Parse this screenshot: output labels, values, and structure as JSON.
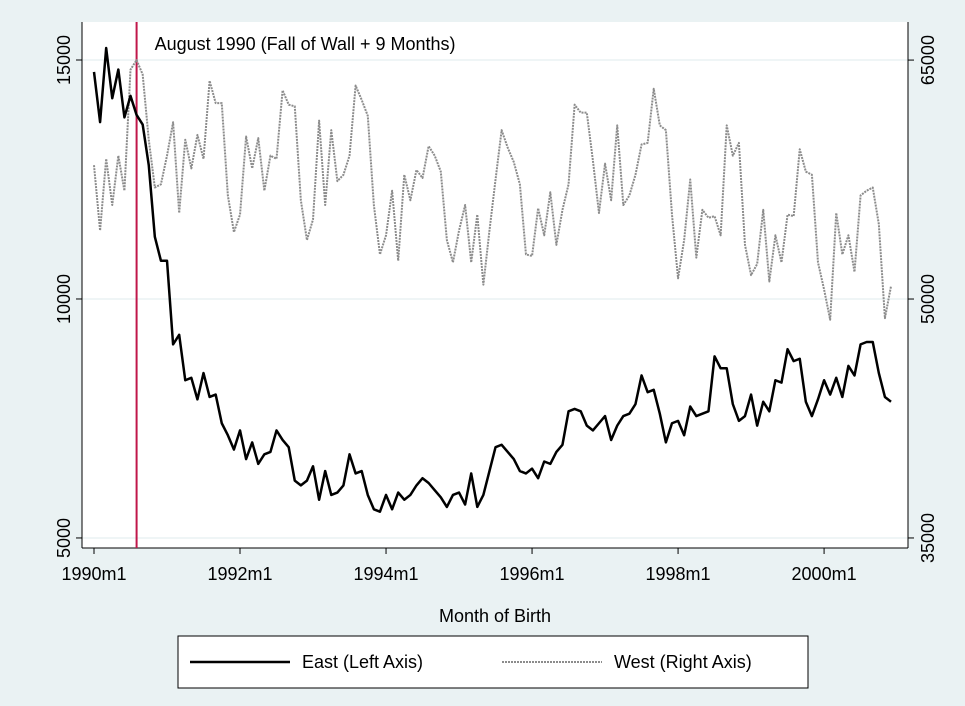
{
  "chart_data": {
    "type": "line",
    "x_label": "Month of Birth",
    "x": [
      "1990m1",
      "1990m2",
      "1990m3",
      "1990m4",
      "1990m5",
      "1990m6",
      "1990m7",
      "1990m8",
      "1990m9",
      "1990m10",
      "1990m11",
      "1990m12",
      "1991m1",
      "1991m2",
      "1991m3",
      "1991m4",
      "1991m5",
      "1991m6",
      "1991m7",
      "1991m8",
      "1991m9",
      "1991m10",
      "1991m11",
      "1991m12",
      "1992m1",
      "1992m2",
      "1992m3",
      "1992m4",
      "1992m5",
      "1992m6",
      "1992m7",
      "1992m8",
      "1992m9",
      "1992m10",
      "1992m11",
      "1992m12",
      "1993m1",
      "1993m2",
      "1993m3",
      "1993m4",
      "1993m5",
      "1993m6",
      "1993m7",
      "1993m8",
      "1993m9",
      "1993m10",
      "1993m11",
      "1993m12",
      "1994m1",
      "1994m2",
      "1994m3",
      "1994m4",
      "1994m5",
      "1994m6",
      "1994m7",
      "1994m8",
      "1994m9",
      "1994m10",
      "1994m11",
      "1994m12",
      "1995m1",
      "1995m2",
      "1995m3",
      "1995m4",
      "1995m5",
      "1995m6",
      "1995m7",
      "1995m8",
      "1995m9",
      "1995m10",
      "1995m11",
      "1995m12",
      "1996m1",
      "1996m2",
      "1996m3",
      "1996m4",
      "1996m5",
      "1996m6",
      "1996m7",
      "1996m8",
      "1996m9",
      "1996m10",
      "1996m11",
      "1996m12",
      "1997m1",
      "1997m2",
      "1997m3",
      "1997m4",
      "1997m5",
      "1997m6",
      "1997m7",
      "1997m8",
      "1997m9",
      "1997m10",
      "1997m11",
      "1997m12",
      "1998m1",
      "1998m2",
      "1998m3",
      "1998m4",
      "1998m5",
      "1998m6",
      "1998m7",
      "1998m8",
      "1998m9",
      "1998m10",
      "1998m11",
      "1998m12",
      "1999m1",
      "1999m2",
      "1999m3",
      "1999m4",
      "1999m5",
      "1999m6",
      "1999m7",
      "1999m8",
      "1999m9",
      "1999m10",
      "1999m11",
      "1999m12",
      "2000m1",
      "2000m2",
      "2000m3",
      "2000m4",
      "2000m5",
      "2000m6",
      "2000m7",
      "2000m8",
      "2000m9",
      "2000m10",
      "2000m11",
      "2000m12"
    ],
    "series": [
      {
        "name": "East (Left Axis)",
        "color": "#000000",
        "style": "solid",
        "axis": "y",
        "values": [
          14750,
          13700,
          15250,
          14200,
          14800,
          13800,
          14250,
          13850,
          13650,
          12800,
          11300,
          10800,
          10800,
          9050,
          9250,
          8300,
          8350,
          7900,
          8450,
          7950,
          8000,
          7400,
          7150,
          6850,
          7250,
          6650,
          7000,
          6550,
          6750,
          6800,
          7250,
          7050,
          6900,
          6200,
          6100,
          6200,
          6500,
          5800,
          6400,
          5900,
          5950,
          6100,
          6750,
          6350,
          6400,
          5900,
          5600,
          5550,
          5900,
          5600,
          5950,
          5800,
          5900,
          6100,
          6250,
          6150,
          6000,
          5850,
          5650,
          5900,
          5950,
          5700,
          6350,
          5650,
          5900,
          6400,
          6900,
          6950,
          6800,
          6650,
          6400,
          6350,
          6450,
          6250,
          6600,
          6550,
          6800,
          6950,
          7650,
          7700,
          7650,
          7350,
          7250,
          7400,
          7550,
          7050,
          7350,
          7550,
          7600,
          7800,
          8400,
          8050,
          8100,
          7600,
          7000,
          7400,
          7450,
          7150,
          7750,
          7550,
          7600,
          7650,
          8800,
          8550,
          8550,
          7800,
          7450,
          7550,
          8000,
          7350,
          7850,
          7650,
          8300,
          8250,
          8950,
          8700,
          8750,
          7850,
          7550,
          7900,
          8300,
          8000,
          8350,
          7950,
          8600,
          8400,
          9050,
          9100,
          9100,
          8450,
          7950,
          7850
        ]
      },
      {
        "name": "West (Right Axis)",
        "color": "#8c8c8c",
        "style": "dotted",
        "axis": "y2",
        "values": [
          58400,
          54300,
          58800,
          55900,
          59000,
          56800,
          64400,
          65000,
          64100,
          60000,
          57000,
          57200,
          59000,
          61100,
          55400,
          60000,
          58200,
          60300,
          58800,
          63700,
          62300,
          62300,
          56500,
          54200,
          55300,
          60200,
          58200,
          60100,
          56800,
          59000,
          58800,
          63100,
          62200,
          62100,
          56200,
          53700,
          55000,
          61200,
          55900,
          60600,
          57400,
          57800,
          59000,
          63400,
          62500,
          61500,
          55900,
          52800,
          54000,
          56800,
          52400,
          57800,
          56200,
          58100,
          57600,
          59600,
          59000,
          58000,
          53700,
          52300,
          54300,
          55900,
          52300,
          55300,
          50900,
          54300,
          57500,
          60600,
          59500,
          58600,
          57200,
          52800,
          52700,
          55700,
          54000,
          56700,
          53400,
          55600,
          57200,
          62200,
          61700,
          61700,
          58700,
          55400,
          58500,
          56200,
          60900,
          55900,
          56500,
          57800,
          59700,
          59800,
          63200,
          60900,
          60600,
          55300,
          51300,
          53700,
          57500,
          52600,
          55600,
          55100,
          55200,
          54000,
          60900,
          59000,
          59800,
          53400,
          51500,
          52200,
          55600,
          51100,
          54000,
          52300,
          55300,
          55200,
          59400,
          58000,
          57800,
          52300,
          50600,
          48700,
          55400,
          52800,
          54000,
          51700,
          56500,
          56800,
          57000,
          54700,
          48800,
          50800
        ]
      }
    ],
    "xticks": [
      "1990m1",
      "1992m1",
      "1994m1",
      "1996m1",
      "1998m1",
      "2000m1"
    ],
    "ylim": [
      4790,
      15795
    ],
    "yticks": [
      5000,
      10000,
      15000
    ],
    "y2lim": [
      34370,
      67390
    ],
    "y2ticks": [
      35000,
      50000,
      65000
    ],
    "grid": true,
    "annotation": {
      "text": "August 1990 (Fall of Wall + 9 Months)",
      "x": "1990m8",
      "color": "#c0174a"
    },
    "legend": "bottom"
  }
}
